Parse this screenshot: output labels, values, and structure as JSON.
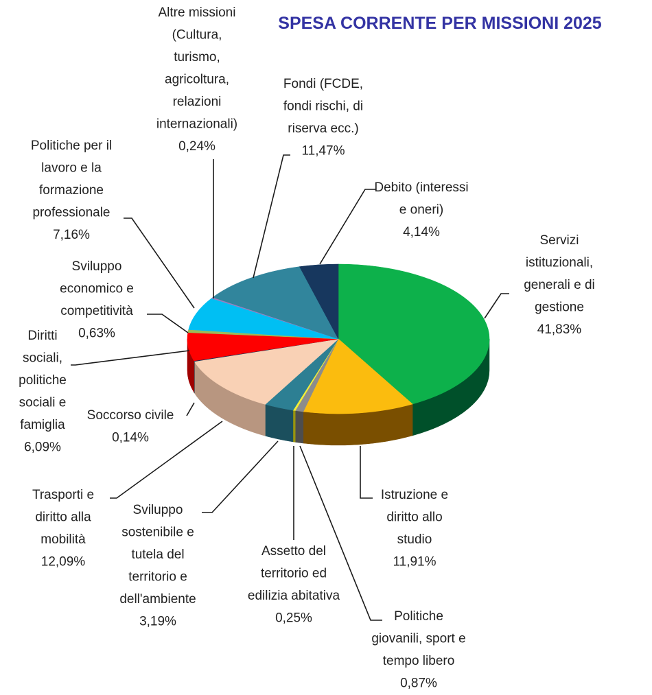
{
  "chart_data": {
    "type": "pie",
    "title": "SPESA CORRENTE PER MISSIONI 2025",
    "slices": [
      {
        "name": "Servizi istituzionali, generali e di gestione",
        "label_lines": [
          "Servizi",
          "istituzionali,",
          "generali e di",
          "gestione",
          "41,83%"
        ],
        "value": 41.83,
        "color": "#0db14b",
        "side_color": "#00502a"
      },
      {
        "name": "Istruzione e diritto allo studio",
        "label_lines": [
          "Istruzione e",
          "diritto allo",
          "studio",
          "11,91%"
        ],
        "value": 11.91,
        "color": "#fbbc0e",
        "side_color": "#7a4f00"
      },
      {
        "name": "Politiche giovanili, sport e tempo libero",
        "label_lines": [
          "Politiche",
          "giovanili, sport e",
          "tempo libero",
          "0,87%"
        ],
        "value": 0.87,
        "color": "#8c8c8c",
        "side_color": "#4d4d4d"
      },
      {
        "name": "Assetto del territorio ed edilizia abitativa",
        "label_lines": [
          "Assetto del",
          "territorio ed",
          "edilizia abitativa",
          "0,25%"
        ],
        "value": 0.25,
        "color": "#f3ef37",
        "side_color": "#9a950f"
      },
      {
        "name": "Sviluppo sostenibile e tutela del territorio e dell'ambiente",
        "label_lines": [
          "Sviluppo",
          "sostenibile e",
          "tutela del",
          "territorio e",
          "dell'ambiente",
          "3,19%"
        ],
        "value": 3.19,
        "color": "#2d7f93",
        "side_color": "#1b4f5d"
      },
      {
        "name": "Trasporti e diritto alla mobilità",
        "label_lines": [
          "Trasporti e",
          "diritto alla",
          "mobilità",
          "12,09%"
        ],
        "value": 12.09,
        "color": "#f9d1b5",
        "side_color": "#b89680"
      },
      {
        "name": "Soccorso civile",
        "label_lines": [
          "Soccorso civile",
          "0,14%"
        ],
        "value": 0.14,
        "color": "#0f3159",
        "side_color": "#071a30"
      },
      {
        "name": "Diritti sociali, politiche sociali e famiglia",
        "label_lines": [
          "Diritti",
          "sociali,",
          "politiche",
          "sociali e",
          "famiglia",
          "6,09%"
        ],
        "value": 6.09,
        "color": "#fe0000",
        "side_color": "#a00000"
      },
      {
        "name": "Sviluppo economico e competitività",
        "label_lines": [
          "Sviluppo",
          "economico e",
          "competitività",
          "0,63%"
        ],
        "value": 0.63,
        "color": "#9bbb59",
        "side_color": "#5f7a30"
      },
      {
        "name": "Politiche per il lavoro e la formazione professionale",
        "label_lines": [
          "Politiche per il",
          "lavoro e la",
          "formazione",
          "professionale",
          "7,16%"
        ],
        "value": 7.16,
        "color": "#00bff3",
        "side_color": "#00789a"
      },
      {
        "name": "Altre missioni (Cultura, turismo, agricoltura, relazioni internazionali)",
        "label_lines": [
          "Altre missioni",
          "(Cultura,",
          "turismo,",
          "agricoltura,",
          "relazioni",
          "internazionali)",
          "0,24%"
        ],
        "value": 0.24,
        "color": "#9b7fc0",
        "side_color": "#5c4878"
      },
      {
        "name": "Fondi (FCDE, fondi rischi, di riserva ecc.)",
        "label_lines": [
          "Fondi (FCDE,",
          "fondi rischi, di",
          "riserva ecc.)",
          "11,47%"
        ],
        "value": 11.47,
        "color": "#31859c",
        "side_color": "#1d5060"
      },
      {
        "name": "Debito (interessi e oneri)",
        "label_lines": [
          "Debito (interessi",
          "e oneri)",
          "4,14%"
        ],
        "value": 4.14,
        "color": "#17375e",
        "side_color": "#0b1c30"
      }
    ],
    "legend": "none",
    "style": "3d-pie"
  }
}
